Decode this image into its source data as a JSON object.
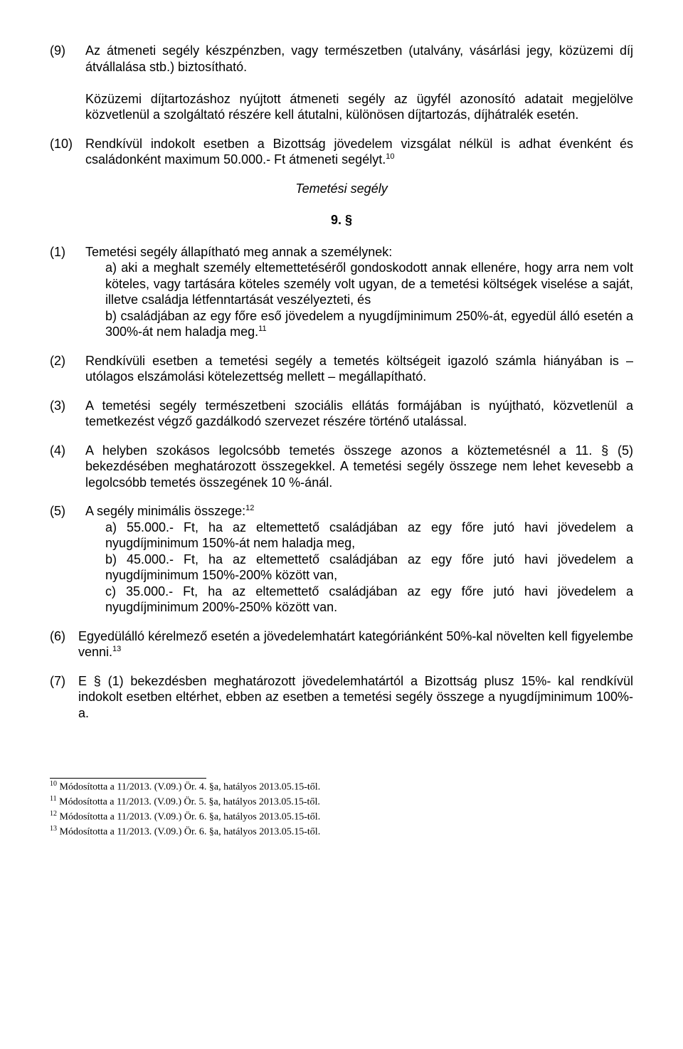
{
  "p9": {
    "num": "(9)",
    "text1": "Az átmeneti segély készpénzben, vagy természetben (utalvány, vásárlási jegy, közüzemi díj átvállalása stb.) biztosítható.",
    "text2": "Közüzemi díjtartozáshoz nyújtott átmeneti segély az ügyfél azonosító adatait megjelölve közvetlenül a szolgáltató részére kell átutalni, különösen díjtartozás, díjhátralék esetén."
  },
  "p10": {
    "num": "(10)",
    "text": "Rendkívül indokolt esetben a Bizottság jövedelem vizsgálat nélkül is adhat évenként és családonként maximum 50.000.- Ft átmeneti segélyt.",
    "sup": "10"
  },
  "title": "Temetési segély",
  "section": "9. §",
  "p1": {
    "num": "(1)",
    "intro": "Temetési segély állapítható meg annak a személynek:",
    "a": "a) aki a meghalt személy eltemettetéséről gondoskodott annak ellenére, hogy arra nem volt köteles, vagy tartására köteles személy volt ugyan, de a temetési költségek viselése a saját, illetve családja létfenntartását veszélyezteti, és",
    "b": "b) családjában az egy főre eső jövedelem a nyugdíjminimum 250%-át, egyedül álló esetén a 300%-át nem haladja meg.",
    "bsup": "11"
  },
  "p2": {
    "num": "(2)",
    "text": "Rendkívüli esetben a temetési segély a temetés költségeit igazoló számla hiányában is – utólagos elszámolási kötelezettség mellett – megállapítható."
  },
  "p3": {
    "num": "(3)",
    "text": "A temetési segély természetbeni szociális ellátás formájában is nyújtható, közvetlenül a temetkezést végző gazdálkodó szervezet részére történő utalással."
  },
  "p4": {
    "num": "(4)",
    "text": "A helyben szokásos legolcsóbb temetés összege azonos a köztemetésnél a 11. § (5) bekezdésében meghatározott összegekkel. A temetési segély összege nem lehet kevesebb a legolcsóbb temetés összegének 10 %-ánál."
  },
  "p5": {
    "num": "(5)",
    "intro": "A segély minimális összege:",
    "sup": "12",
    "a": "a) 55.000.- Ft, ha az eltemettető családjában az egy főre jutó havi jövedelem a nyugdíjminimum 150%-át nem haladja meg,",
    "b": "b)  45.000.- Ft, ha az eltemettető családjában az egy főre jutó havi jövedelem a nyugdíjminimum 150%-200% között van,",
    "c": "c) 35.000.- Ft, ha az eltemettető családjában az egy főre jutó havi jövedelem a nyugdíjminimum 200%-250% között van."
  },
  "p6": {
    "num": "(6)",
    "text": "Egyedülálló kérelmező esetén a jövedelemhatárt kategóriánként 50%-kal növelten kell figyelembe venni.",
    "sup": "13"
  },
  "p7": {
    "num": "(7)",
    "text": "E § (1) bekezdésben meghatározott jövedelemhatártól a Bizottság plusz 15%- kal rendkívül indokolt esetben eltérhet, ebben az esetben a temetési segély összege a nyugdíjminimum 100%-a."
  },
  "fn10": {
    "num": "10",
    "text": " Módosította a 11/2013. (V.09.) Ör. 4. §a, hatályos 2013.05.15-től."
  },
  "fn11": {
    "num": "11",
    "text": " Módosította a 11/2013. (V.09.) Ör. 5. §a, hatályos 2013.05.15-től."
  },
  "fn12": {
    "num": "12",
    "text": " Módosította a 11/2013. (V.09.) Ör. 6. §a, hatályos 2013.05.15-től."
  },
  "fn13": {
    "num": "13",
    "text": " Módosította a 11/2013. (V.09.) Ör. 6. §a, hatályos 2013.05.15-től."
  }
}
